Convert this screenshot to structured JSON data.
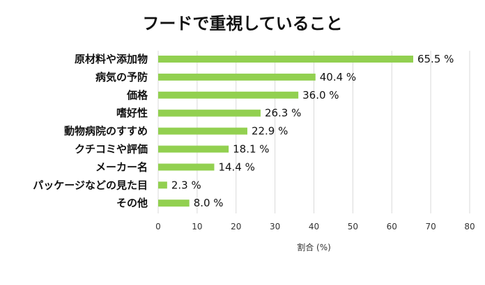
{
  "chart_data": {
    "type": "bar",
    "orientation": "horizontal",
    "title": "フードで重視していること",
    "xlabel": "割合 (%)",
    "ylabel": "",
    "categories": [
      "原材料や添加物",
      "病気の予防",
      "価格",
      "嗜好性",
      "動物病院のすすめ",
      "クチコミや評価",
      "メーカー名",
      "パッケージなどの見た目",
      "その他"
    ],
    "values": [
      65.5,
      40.4,
      36.0,
      26.3,
      22.9,
      18.1,
      14.4,
      2.3,
      8.0
    ],
    "value_labels": [
      "65.5 %",
      "40.4 %",
      "36.0 %",
      "26.3 %",
      "22.9 %",
      "18.1 %",
      "14.4 %",
      "2.3 %",
      "8.0 %"
    ],
    "xlim": [
      0,
      80
    ],
    "xticks": [
      "0",
      "10",
      "20",
      "30",
      "40",
      "50",
      "60",
      "70",
      "80"
    ],
    "grid": true,
    "bar_color": "#92d050",
    "grid_color": "#d9d9d9"
  }
}
